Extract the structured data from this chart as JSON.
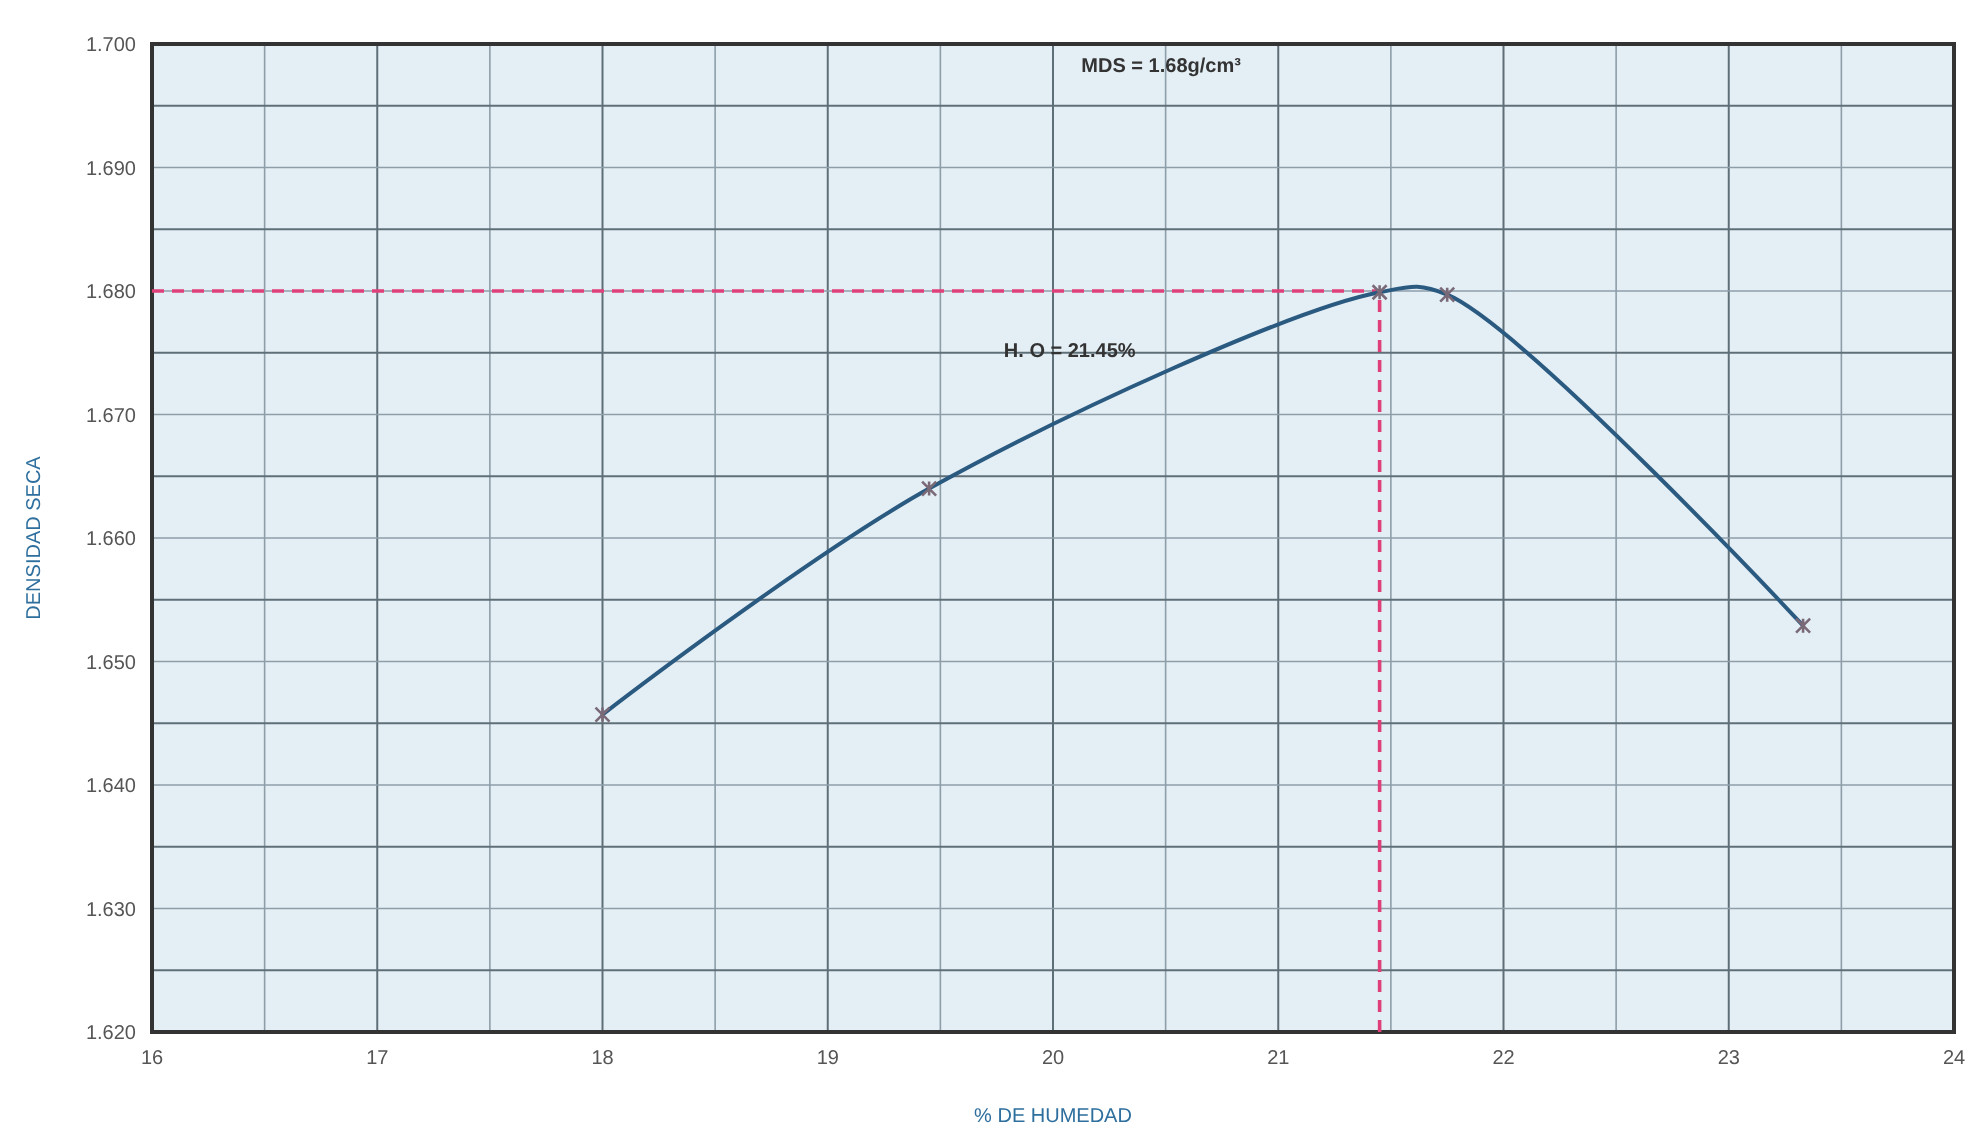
{
  "chart_data": {
    "type": "line",
    "xlabel": "% DE HUMEDAD",
    "ylabel": "DENSIDAD SECA",
    "xlim": [
      16,
      24
    ],
    "xticks": [
      16,
      {
        "value": 16.5,
        "label": null
      },
      17,
      {
        "value": 17.5,
        "label": null
      },
      18,
      {
        "value": 18.5,
        "label": null
      },
      19,
      {
        "value": 19.5,
        "label": null
      },
      20,
      {
        "value": 20.5,
        "label": null
      },
      21,
      {
        "value": 21.5,
        "label": null
      },
      22,
      {
        "value": 22.5,
        "label": null
      },
      23,
      {
        "value": 23.5,
        "label": null
      },
      24
    ],
    "ylim": [
      1.62,
      1.7
    ],
    "yticks": [
      {
        "value": 1.62,
        "label": "1.620"
      },
      {
        "value": 1.625,
        "label": null
      },
      {
        "value": 1.63,
        "label": "1.630"
      },
      {
        "value": 1.635,
        "label": null
      },
      {
        "value": 1.64,
        "label": "1.640"
      },
      {
        "value": 1.645,
        "label": null
      },
      {
        "value": 1.65,
        "label": "1.650"
      },
      {
        "value": 1.655,
        "label": null
      },
      {
        "value": 1.66,
        "label": "1.660"
      },
      {
        "value": 1.665,
        "label": null
      },
      {
        "value": 1.67,
        "label": "1.670"
      },
      {
        "value": 1.675,
        "label": null
      },
      {
        "value": 1.68,
        "label": "1.680"
      },
      {
        "value": 1.685,
        "label": null
      },
      {
        "value": 1.69,
        "label": "1.690"
      },
      {
        "value": 1.695,
        "label": null
      },
      {
        "value": 1.7,
        "label": "1.700"
      }
    ],
    "grid": true,
    "marker": "cross",
    "line_style": "solid",
    "series": [
      {
        "color": "#2b5a80",
        "x": [
          18.0,
          19.45,
          21.45,
          21.75,
          23.33
        ],
        "values": [
          1.6457,
          1.664,
          1.6799,
          1.6797,
          1.6529
        ]
      }
    ],
    "ref_lines": [
      {
        "axis": "y",
        "value": 1.68,
        "color": "#e0407a",
        "line_style": "dashed"
      },
      {
        "axis": "x",
        "value": 21.45,
        "color": "#e0407a",
        "line_style": "dashed"
      }
    ],
    "annotations": [
      "MDS = 1.68g/cm³",
      "H. O = 21.45%"
    ]
  }
}
